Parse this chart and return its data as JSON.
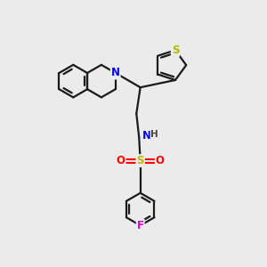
{
  "bg_color": "#ebebeb",
  "bond_color": "#1a1a1a",
  "N_color": "#0000ff",
  "S_color": "#b8b800",
  "O_color": "#ff0000",
  "F_color": "#cc00cc",
  "lw": 1.6,
  "figsize": [
    3.0,
    3.0
  ],
  "dpi": 100,
  "xlim": [
    0,
    10
  ],
  "ylim": [
    0,
    10
  ]
}
